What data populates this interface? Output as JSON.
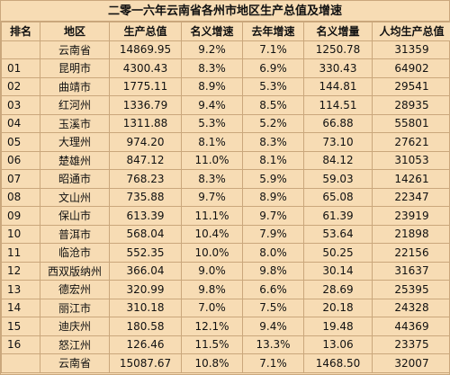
{
  "title": "二零一六年云南省各州市地区生产总值及增速",
  "headers": [
    "排名",
    "地区",
    "生产总值",
    "名义增速",
    "去年增速",
    "名义增量",
    "人均生产总值"
  ],
  "rows": [
    {
      "rank": "",
      "area": "云南省",
      "gdp": "14869.95",
      "nominal_growth": "9.2%",
      "prev_growth": "7.1%",
      "nominal_increase": "1250.78",
      "per_capita": "31359"
    },
    {
      "rank": "01",
      "area": "昆明市",
      "gdp": "4300.43",
      "nominal_growth": "8.3%",
      "prev_growth": "6.9%",
      "nominal_increase": "330.43",
      "per_capita": "64902"
    },
    {
      "rank": "02",
      "area": "曲靖市",
      "gdp": "1775.11",
      "nominal_growth": "8.9%",
      "prev_growth": "5.3%",
      "nominal_increase": "144.81",
      "per_capita": "29541"
    },
    {
      "rank": "03",
      "area": "红河州",
      "gdp": "1336.79",
      "nominal_growth": "9.4%",
      "prev_growth": "8.5%",
      "nominal_increase": "114.51",
      "per_capita": "28935"
    },
    {
      "rank": "04",
      "area": "玉溪市",
      "gdp": "1311.88",
      "nominal_growth": "5.3%",
      "prev_growth": "5.2%",
      "nominal_increase": "66.88",
      "per_capita": "55801"
    },
    {
      "rank": "05",
      "area": "大理州",
      "gdp": "974.20",
      "nominal_growth": "8.1%",
      "prev_growth": "8.3%",
      "nominal_increase": "73.10",
      "per_capita": "27621"
    },
    {
      "rank": "06",
      "area": "楚雄州",
      "gdp": "847.12",
      "nominal_growth": "11.0%",
      "prev_growth": "8.1%",
      "nominal_increase": "84.12",
      "per_capita": "31053"
    },
    {
      "rank": "07",
      "area": "昭通市",
      "gdp": "768.23",
      "nominal_growth": "8.3%",
      "prev_growth": "5.9%",
      "nominal_increase": "59.03",
      "per_capita": "14261"
    },
    {
      "rank": "08",
      "area": "文山州",
      "gdp": "735.88",
      "nominal_growth": "9.7%",
      "prev_growth": "8.9%",
      "nominal_increase": "65.08",
      "per_capita": "22347"
    },
    {
      "rank": "09",
      "area": "保山市",
      "gdp": "613.39",
      "nominal_growth": "11.1%",
      "prev_growth": "9.7%",
      "nominal_increase": "61.39",
      "per_capita": "23919"
    },
    {
      "rank": "10",
      "area": "普洱市",
      "gdp": "568.04",
      "nominal_growth": "10.4%",
      "prev_growth": "7.9%",
      "nominal_increase": "53.64",
      "per_capita": "21898"
    },
    {
      "rank": "11",
      "area": "临沧市",
      "gdp": "552.35",
      "nominal_growth": "10.0%",
      "prev_growth": "8.0%",
      "nominal_increase": "50.25",
      "per_capita": "22156"
    },
    {
      "rank": "12",
      "area": "西双版纳州",
      "gdp": "366.04",
      "nominal_growth": "9.0%",
      "prev_growth": "9.8%",
      "nominal_increase": "30.14",
      "per_capita": "31637"
    },
    {
      "rank": "13",
      "area": "德宏州",
      "gdp": "320.99",
      "nominal_growth": "9.8%",
      "prev_growth": "6.6%",
      "nominal_increase": "28.69",
      "per_capita": "25395"
    },
    {
      "rank": "14",
      "area": "丽江市",
      "gdp": "310.18",
      "nominal_growth": "7.0%",
      "prev_growth": "7.5%",
      "nominal_increase": "20.18",
      "per_capita": "24328"
    },
    {
      "rank": "15",
      "area": "迪庆州",
      "gdp": "180.58",
      "nominal_growth": "12.1%",
      "prev_growth": "9.4%",
      "nominal_increase": "19.48",
      "per_capita": "44369"
    },
    {
      "rank": "16",
      "area": "怒江州",
      "gdp": "126.46",
      "nominal_growth": "11.5%",
      "prev_growth": "13.3%",
      "nominal_increase": "13.06",
      "per_capita": "23375"
    },
    {
      "rank": "",
      "area": "云南省",
      "gdp": "15087.67",
      "nominal_growth": "10.8%",
      "prev_growth": "7.1%",
      "nominal_increase": "1468.50",
      "per_capita": "32007"
    }
  ]
}
